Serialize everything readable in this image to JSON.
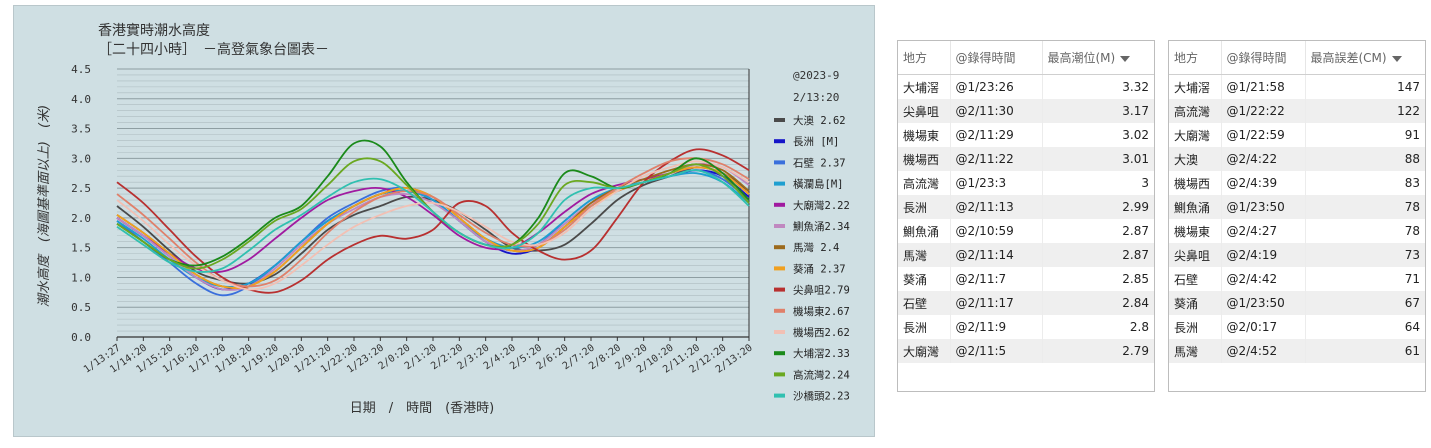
{
  "chart": {
    "title_line1": "香港實時潮水高度",
    "title_line2": "［二十四小時］　－高登氣象台圖表－",
    "timestamp_line1": "@2023-9",
    "timestamp_line2": "2/13:20",
    "xlabel": "日期　/　時間　(香港時)",
    "ylabel": "潮水高度　(海圖基準面以上)　(米)"
  },
  "chart_data": {
    "type": "line",
    "ylim": [
      0,
      4.5
    ],
    "y_ticks": [
      "0.0",
      "0.5",
      "1.0",
      "1.5",
      "2.0",
      "2.5",
      "3.0",
      "3.5",
      "4.0",
      "4.5"
    ],
    "x_ticks": [
      "1/13:27",
      "1/14:20",
      "1/15:20",
      "1/16:20",
      "1/17:20",
      "1/18:20",
      "1/19:20",
      "1/20:20",
      "1/21:20",
      "1/22:20",
      "1/23:20",
      "2/0:20",
      "2/1:20",
      "2/2:20",
      "2/3:20",
      "2/4:20",
      "2/5:20",
      "2/6:20",
      "2/7:20",
      "2/8:20",
      "2/9:20",
      "2/10:20",
      "2/11:20",
      "2/12:20",
      "2/13:20"
    ],
    "grid": true,
    "legend_position": "right",
    "series": [
      {
        "name": "大澳  2.62",
        "color": "#4a4a4a",
        "values": [
          2.2,
          1.85,
          1.45,
          1.1,
          0.95,
          0.9,
          1.05,
          1.4,
          1.8,
          2.05,
          2.2,
          2.35,
          2.3,
          2.1,
          1.8,
          1.5,
          1.45,
          1.55,
          1.9,
          2.3,
          2.55,
          2.7,
          2.85,
          2.75,
          2.45
        ]
      },
      {
        "name": "長洲  [M]",
        "color": "#1515c8",
        "values": [
          2.0,
          1.7,
          1.35,
          1.0,
          0.8,
          0.9,
          1.2,
          1.6,
          1.95,
          2.2,
          2.4,
          2.45,
          2.3,
          1.95,
          1.6,
          1.4,
          1.5,
          1.85,
          2.2,
          2.45,
          2.6,
          2.7,
          2.8,
          2.7,
          2.35
        ]
      },
      {
        "name": "石壁  2.37",
        "color": "#3a6fdc",
        "values": [
          1.95,
          1.6,
          1.25,
          0.9,
          0.7,
          0.85,
          1.2,
          1.6,
          2.0,
          2.25,
          2.45,
          2.5,
          2.3,
          1.95,
          1.6,
          1.45,
          1.55,
          1.95,
          2.3,
          2.5,
          2.6,
          2.7,
          2.8,
          2.65,
          2.3
        ]
      },
      {
        "name": "橫瀾島[M]",
        "color": "#1e9fd0",
        "values": [
          1.95,
          1.65,
          1.3,
          1.0,
          0.85,
          0.9,
          1.2,
          1.6,
          1.95,
          2.2,
          2.4,
          2.45,
          2.3,
          1.95,
          1.65,
          1.5,
          1.6,
          1.95,
          2.3,
          2.5,
          2.6,
          2.7,
          2.75,
          2.6,
          2.25
        ]
      },
      {
        "name": "大廟灣2.22",
        "color": "#a01aa0",
        "values": [
          2.0,
          1.7,
          1.4,
          1.15,
          1.1,
          1.3,
          1.65,
          2.0,
          2.3,
          2.45,
          2.5,
          2.35,
          2.05,
          1.7,
          1.5,
          1.5,
          1.75,
          2.1,
          2.4,
          2.55,
          2.65,
          2.75,
          2.85,
          2.75,
          2.4
        ]
      },
      {
        "name": "鰂魚涌2.34",
        "color": "#c088c0",
        "values": [
          2.0,
          1.7,
          1.35,
          1.0,
          0.8,
          0.85,
          1.15,
          1.55,
          1.9,
          2.15,
          2.35,
          2.4,
          2.25,
          1.95,
          1.6,
          1.45,
          1.55,
          1.9,
          2.25,
          2.45,
          2.6,
          2.75,
          2.9,
          2.85,
          2.55
        ]
      },
      {
        "name": "馬灣  2.4",
        "color": "#9c6a1c",
        "values": [
          2.05,
          1.75,
          1.4,
          1.05,
          0.85,
          0.85,
          1.1,
          1.5,
          1.9,
          2.2,
          2.4,
          2.5,
          2.35,
          2.0,
          1.65,
          1.45,
          1.5,
          1.85,
          2.25,
          2.5,
          2.65,
          2.8,
          2.9,
          2.8,
          2.45
        ]
      },
      {
        "name": "葵涌  2.37",
        "color": "#f0a020",
        "values": [
          2.05,
          1.75,
          1.4,
          1.05,
          0.85,
          0.85,
          1.1,
          1.5,
          1.9,
          2.2,
          2.4,
          2.5,
          2.35,
          2.0,
          1.65,
          1.45,
          1.5,
          1.85,
          2.2,
          2.45,
          2.6,
          2.75,
          2.85,
          2.75,
          2.4
        ]
      },
      {
        "name": "尖鼻咀2.79",
        "color": "#b83030",
        "values": [
          2.6,
          2.25,
          1.8,
          1.35,
          1.0,
          0.8,
          0.75,
          0.95,
          1.3,
          1.55,
          1.7,
          1.65,
          1.8,
          2.25,
          2.2,
          1.75,
          1.45,
          1.3,
          1.45,
          2.0,
          2.6,
          2.95,
          3.15,
          3.05,
          2.8
        ]
      },
      {
        "name": "機場東2.67",
        "color": "#e0806a",
        "values": [
          2.4,
          2.05,
          1.65,
          1.25,
          0.95,
          0.85,
          0.95,
          1.3,
          1.75,
          2.1,
          2.35,
          2.45,
          2.35,
          2.05,
          1.75,
          1.55,
          1.55,
          1.8,
          2.2,
          2.5,
          2.75,
          2.95,
          3.0,
          2.9,
          2.65
        ]
      },
      {
        "name": "機場西2.62",
        "color": "#f2c0b4",
        "values": [
          2.3,
          1.95,
          1.55,
          1.2,
          0.95,
          0.8,
          0.9,
          1.2,
          1.55,
          1.85,
          2.05,
          2.2,
          2.25,
          2.1,
          1.85,
          1.6,
          1.55,
          1.75,
          2.15,
          2.45,
          2.7,
          2.85,
          2.95,
          2.85,
          2.6
        ]
      },
      {
        "name": "大埔滘2.33",
        "color": "#1a8a1a",
        "values": [
          1.9,
          1.6,
          1.3,
          1.2,
          1.35,
          1.65,
          2.0,
          2.2,
          2.7,
          3.25,
          3.2,
          2.6,
          2.1,
          1.75,
          1.55,
          1.55,
          2.0,
          2.75,
          2.7,
          2.5,
          2.6,
          2.75,
          3.0,
          2.75,
          2.3
        ]
      },
      {
        "name": "高流灣2.24",
        "color": "#6aa820",
        "values": [
          1.9,
          1.6,
          1.3,
          1.15,
          1.3,
          1.6,
          1.95,
          2.15,
          2.55,
          2.95,
          2.95,
          2.55,
          2.1,
          1.75,
          1.55,
          1.55,
          1.9,
          2.55,
          2.6,
          2.5,
          2.6,
          2.75,
          2.9,
          2.7,
          2.25
        ]
      },
      {
        "name": "沙橋頭2.23",
        "color": "#30c0b0",
        "values": [
          1.85,
          1.55,
          1.25,
          1.1,
          1.15,
          1.45,
          1.8,
          2.05,
          2.35,
          2.6,
          2.65,
          2.45,
          2.1,
          1.75,
          1.55,
          1.5,
          1.75,
          2.3,
          2.5,
          2.5,
          2.6,
          2.7,
          2.8,
          2.6,
          2.2
        ]
      }
    ]
  },
  "table1": {
    "headers": [
      "地方",
      "@錄得時間",
      "最高潮位(M)"
    ],
    "rows": [
      [
        "大埔滘",
        "@1/23:26",
        "3.32"
      ],
      [
        "尖鼻咀",
        "@2/11:30",
        "3.17"
      ],
      [
        "機場東",
        "@2/11:29",
        "3.02"
      ],
      [
        "機場西",
        "@2/11:22",
        "3.01"
      ],
      [
        "高流灣",
        "@1/23:3",
        "3"
      ],
      [
        "長洲",
        "@2/11:13",
        "2.99"
      ],
      [
        "鰂魚涌",
        "@2/10:59",
        "2.87"
      ],
      [
        "馬灣",
        "@2/11:14",
        "2.87"
      ],
      [
        "葵涌",
        "@2/11:7",
        "2.85"
      ],
      [
        "石壁",
        "@2/11:17",
        "2.84"
      ],
      [
        "長洲",
        "@2/11:9",
        "2.8"
      ],
      [
        "大廟灣",
        "@2/11:5",
        "2.79"
      ]
    ]
  },
  "table2": {
    "headers": [
      "地方",
      "@錄得時間",
      "最高誤差(CM)"
    ],
    "rows": [
      [
        "大埔滘",
        "@1/21:58",
        "147"
      ],
      [
        "高流灣",
        "@1/22:22",
        "122"
      ],
      [
        "大廟灣",
        "@1/22:59",
        "91"
      ],
      [
        "大澳",
        "@2/4:22",
        "88"
      ],
      [
        "機場西",
        "@2/4:39",
        "83"
      ],
      [
        "鰂魚涌",
        "@1/23:50",
        "78"
      ],
      [
        "機場東",
        "@2/4:27",
        "78"
      ],
      [
        "尖鼻咀",
        "@2/4:19",
        "73"
      ],
      [
        "石壁",
        "@2/4:42",
        "71"
      ],
      [
        "葵涌",
        "@1/23:50",
        "67"
      ],
      [
        "長洲",
        "@2/0:17",
        "64"
      ],
      [
        "馬灣",
        "@2/4:52",
        "61"
      ]
    ]
  }
}
